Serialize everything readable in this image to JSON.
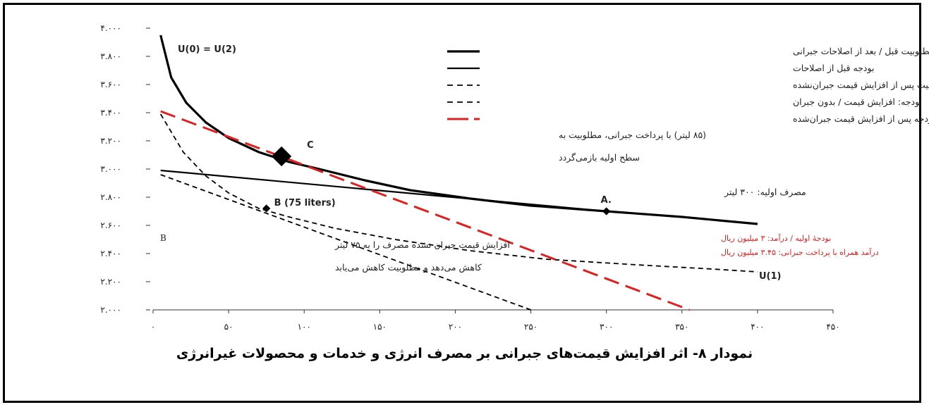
{
  "caption": "نمودار ۸- اثر افزایش قیمت‌های جبرانی بر مصرف انرژی و خدمات و محصولات غیرانرژی",
  "chart_data": {
    "type": "line",
    "x_ticks": [
      "۰",
      "۵۰",
      "۱۰۰",
      "۱۵۰",
      "۲۰۰",
      "۲۵۰",
      "۳۰۰",
      "۳۵۰",
      "۴۰۰",
      "۴۵۰"
    ],
    "y_ticks": [
      "۲.۰۰۰",
      "۲.۲۰۰",
      "۲.۴۰۰",
      "۲.۶۰۰",
      "۲.۸۰۰",
      "۳.۰۰۰",
      "۳.۲۰۰",
      "۳.۴۰۰",
      "۳.۶۰۰",
      "۳.۸۰۰",
      "۴.۰۰۰"
    ],
    "xlim": [
      0,
      450
    ],
    "ylim": [
      2000,
      4000
    ],
    "legend": [
      {
        "label": "مطلوبیت قبل / بعد از اصلاحات جبرانی",
        "style": "solid-thick",
        "color": "#000000"
      },
      {
        "label": "بودجه قبل از اصلاحات",
        "style": "solid",
        "color": "#000000"
      },
      {
        "label": "مطلوبیت پس از افزایش قیمت جبران‌نشده",
        "style": "dashed",
        "color": "#000000"
      },
      {
        "label": "بودجه: افزایش قیمت / بدون جبران",
        "style": "dashed",
        "color": "#000000"
      },
      {
        "label": "بودجه پس از افزایش قیمت جبران‌شده",
        "style": "dashed-thick",
        "color": "#e02020"
      }
    ],
    "series": [
      {
        "key": "u0",
        "style": "solid-thick",
        "color": "#000000",
        "x": [
          5,
          12,
          22,
          35,
          50,
          70,
          90,
          110,
          140,
          170,
          210,
          250,
          300,
          350,
          400
        ],
        "y": [
          3950,
          3650,
          3470,
          3330,
          3220,
          3120,
          3050,
          3000,
          2920,
          2850,
          2790,
          2740,
          2700,
          2660,
          2610
        ]
      },
      {
        "key": "budget_before",
        "style": "solid",
        "color": "#000000",
        "x": [
          5,
          300
        ],
        "y": [
          2990,
          2700
        ]
      },
      {
        "key": "u1",
        "style": "dashed",
        "color": "#000000",
        "x": [
          5,
          20,
          35,
          50,
          70,
          90,
          120,
          160,
          210,
          260,
          320,
          370,
          400
        ],
        "y": [
          3390,
          3120,
          2950,
          2830,
          2720,
          2660,
          2580,
          2500,
          2420,
          2360,
          2320,
          2290,
          2270
        ]
      },
      {
        "key": "budget_uncomp",
        "style": "dashed",
        "color": "#000000",
        "x": [
          5,
          250
        ],
        "y": [
          2960,
          2000
        ]
      },
      {
        "key": "budget_comp",
        "style": "dashed-thick",
        "color": "#e02020",
        "x": [
          5,
          355
        ],
        "y": [
          3410,
          2000
        ]
      }
    ],
    "points": [
      {
        "label": "A.",
        "x": 300,
        "y": 2700
      },
      {
        "label": "B (75 liters)",
        "x": 75,
        "y": 2720
      },
      {
        "label": "C",
        "x": 85,
        "y": 3090
      }
    ],
    "annotations": {
      "u0_label": "U(0) = U(2)",
      "u1_label": "U(1)",
      "c_note_1": "(۸۵ لیتر) با پرداخت جبرانی، مطلوبیت به",
      "c_note_2": "سطح اولیه بازمی‌گردد",
      "initial_consumption": "مصرف اولیه: ۳۰۰ لیتر",
      "red_note_1": "بودجهٔ اولیه / درآمد: ۳ میلیون ریال",
      "red_note_2": "درآمد همراه با پرداخت جبرانی: ۳.۴۵ میلیون ریال",
      "b_note_1": "افزایش قیمت جبران نشده مصرف را به ۷۵ لیتر",
      "b_note_2": "کاهش می‌دهد و مطلوبیت کاهش می‌یابد",
      "b_small": "B"
    }
  }
}
